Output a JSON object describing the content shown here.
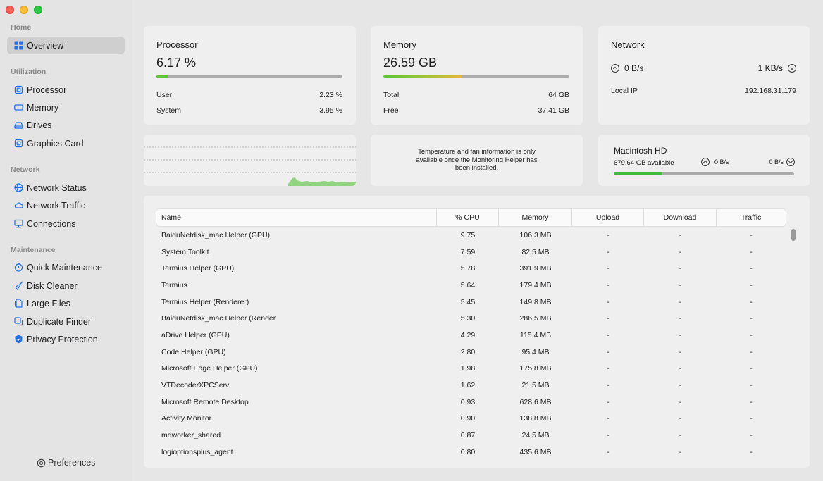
{
  "sidebar": {
    "sections": [
      {
        "title": "Home",
        "items": [
          {
            "label": "Overview",
            "icon": "grid-icon"
          }
        ]
      },
      {
        "title": "Utilization",
        "items": [
          {
            "label": "Processor",
            "icon": "chip-icon"
          },
          {
            "label": "Memory",
            "icon": "memory-icon"
          },
          {
            "label": "Drives",
            "icon": "drive-icon"
          },
          {
            "label": "Graphics Card",
            "icon": "gpu-icon"
          }
        ]
      },
      {
        "title": "Network",
        "items": [
          {
            "label": "Network Status",
            "icon": "globe-icon"
          },
          {
            "label": "Network Traffic",
            "icon": "cloud-icon"
          },
          {
            "label": "Connections",
            "icon": "monitor-icon"
          }
        ]
      },
      {
        "title": "Maintenance",
        "items": [
          {
            "label": "Quick Maintenance",
            "icon": "stopwatch-icon"
          },
          {
            "label": "Disk Cleaner",
            "icon": "broom-icon"
          },
          {
            "label": "Large Files",
            "icon": "document-icon"
          },
          {
            "label": "Duplicate Finder",
            "icon": "duplicate-icon"
          },
          {
            "label": "Privacy Protection",
            "icon": "shield-icon"
          }
        ]
      }
    ],
    "preferences_label": "Preferences",
    "accent": "#1f6feb"
  },
  "processor": {
    "title": "Processor",
    "value": "6.17 %",
    "usage_fraction": 0.0617,
    "user_label": "User",
    "user_value": "2.23 %",
    "system_label": "System",
    "system_value": "3.95 %",
    "bar_color": "#5ac43a"
  },
  "memory": {
    "title": "Memory",
    "value": "26.59 GB",
    "usage_fraction": 0.42,
    "total_label": "Total",
    "total_value": "64 GB",
    "free_label": "Free",
    "free_value": "37.41 GB"
  },
  "network": {
    "title": "Network",
    "upload": "0 B/s",
    "download": "1 KB/s",
    "local_ip_label": "Local IP",
    "local_ip": "192.168.31.179"
  },
  "sensors": {
    "message": "Temperature and fan information is only available once the Monitoring Helper has been installed."
  },
  "disk": {
    "title": "Macintosh HD",
    "available": "679.64 GB available",
    "read": "0 B/s",
    "write": "0 B/s",
    "usage_fraction": 0.27
  },
  "table": {
    "columns": [
      "Name",
      "% CPU",
      "Memory",
      "Upload",
      "Download",
      "Traffic"
    ],
    "rows": [
      [
        "BaiduNetdisk_mac Helper (GPU)",
        "9.75",
        "106.3 MB",
        "-",
        "-",
        "-"
      ],
      [
        "System Toolkit",
        "7.59",
        "82.5 MB",
        "-",
        "-",
        "-"
      ],
      [
        "Termius Helper (GPU)",
        "5.78",
        "391.9 MB",
        "-",
        "-",
        "-"
      ],
      [
        "Termius",
        "5.64",
        "179.4 MB",
        "-",
        "-",
        "-"
      ],
      [
        "Termius Helper (Renderer)",
        "5.45",
        "149.8 MB",
        "-",
        "-",
        "-"
      ],
      [
        "BaiduNetdisk_mac Helper (Render",
        "5.30",
        "286.5 MB",
        "-",
        "-",
        "-"
      ],
      [
        "aDrive Helper (GPU)",
        "4.29",
        "115.4 MB",
        "-",
        "-",
        "-"
      ],
      [
        "Code Helper (GPU)",
        "2.80",
        "95.4 MB",
        "-",
        "-",
        "-"
      ],
      [
        "Microsoft Edge Helper (GPU)",
        "1.98",
        "175.8 MB",
        "-",
        "-",
        "-"
      ],
      [
        "VTDecoderXPCServ",
        "1.62",
        "21.5 MB",
        "-",
        "-",
        "-"
      ],
      [
        "Microsoft Remote Desktop",
        "0.93",
        "628.6 MB",
        "-",
        "-",
        "-"
      ],
      [
        "Activity Monitor",
        "0.90",
        "138.8 MB",
        "-",
        "-",
        "-"
      ],
      [
        "mdworker_shared",
        "0.87",
        "24.5 MB",
        "-",
        "-",
        "-"
      ],
      [
        "logioptionsplus_agent",
        "0.80",
        "435.6 MB",
        "-",
        "-",
        "-"
      ]
    ]
  }
}
